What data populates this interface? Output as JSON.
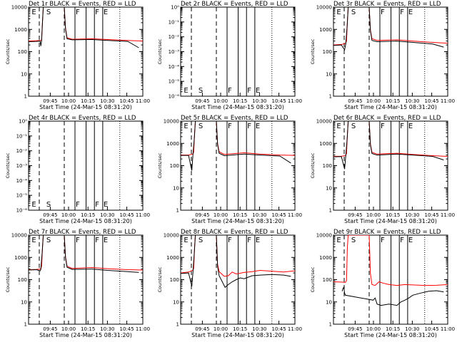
{
  "chart_data": {
    "type": "line",
    "xlabel": "Start Time (24-Mar-15 08:31:20)",
    "ylabel": "Counts/sec",
    "x_ticks": [
      "09:45",
      "10:00",
      "10:15",
      "10:30",
      "10:45",
      "11:00"
    ],
    "colors": {
      "events": "#000000",
      "lld": "#ff0000"
    },
    "panels": [
      {
        "title": "Det 1r BLACK = Events, RED = LLD",
        "kind": "data",
        "y_ticks": [
          "1",
          "10",
          "100",
          "1000",
          "10000"
        ],
        "markers": [
          "E",
          "S",
          "F",
          "F",
          "E"
        ],
        "lld": [
          [
            0,
            300
          ],
          [
            20,
            310
          ],
          [
            30,
            315
          ],
          [
            33,
            340
          ],
          [
            35,
            2000
          ],
          [
            37,
            10000
          ],
          [
            90,
            10000
          ],
          [
            93,
            1200
          ],
          [
            97,
            420
          ],
          [
            110,
            360
          ],
          [
            160,
            380
          ],
          [
            200,
            350
          ],
          [
            250,
            320
          ],
          [
            288,
            300
          ]
        ],
        "events": [
          [
            0,
            280
          ],
          [
            20,
            290
          ],
          [
            29,
            300
          ],
          [
            31,
            180
          ],
          [
            33,
            320
          ],
          [
            35,
            1800
          ],
          [
            37,
            10000
          ],
          [
            90,
            10000
          ],
          [
            93,
            1100
          ],
          [
            97,
            380
          ],
          [
            110,
            340
          ],
          [
            160,
            350
          ],
          [
            200,
            320
          ],
          [
            250,
            290
          ],
          [
            278,
            150
          ]
        ]
      },
      {
        "title": "Det 2r BLACK = Events, RED = LLD",
        "kind": "empty",
        "y_ticks": [
          "10⁻⁶",
          "10⁻⁵",
          "10⁻⁴",
          "10⁻³",
          "10⁻²",
          "10⁻¹",
          "10⁰"
        ],
        "markers": [
          "E",
          "S",
          "F",
          "F",
          "E"
        ]
      },
      {
        "title": "Det 3r BLACK = Events, RED = LLD",
        "kind": "data",
        "y_ticks": [
          "1",
          "10",
          "100",
          "1000",
          "10000"
        ],
        "markers": [
          "E",
          "S",
          "F",
          "F",
          "E"
        ],
        "lld": [
          [
            0,
            200
          ],
          [
            20,
            210
          ],
          [
            30,
            230
          ],
          [
            33,
            300
          ],
          [
            35,
            2000
          ],
          [
            37,
            10000
          ],
          [
            90,
            10000
          ],
          [
            93,
            1000
          ],
          [
            97,
            380
          ],
          [
            110,
            320
          ],
          [
            160,
            340
          ],
          [
            200,
            300
          ],
          [
            250,
            260
          ],
          [
            288,
            240
          ]
        ],
        "events": [
          [
            0,
            190
          ],
          [
            20,
            200
          ],
          [
            28,
            120
          ],
          [
            31,
            220
          ],
          [
            35,
            1800
          ],
          [
            37,
            10000
          ],
          [
            90,
            10000
          ],
          [
            93,
            900
          ],
          [
            97,
            320
          ],
          [
            110,
            280
          ],
          [
            160,
            300
          ],
          [
            200,
            260
          ],
          [
            250,
            220
          ],
          [
            278,
            160
          ]
        ]
      },
      {
        "title": "Det 4r BLACK = Events, RED = LLD",
        "kind": "empty",
        "y_ticks": [
          "10⁻⁶",
          "10⁻⁵",
          "10⁻⁴",
          "10⁻³",
          "10⁻²",
          "10⁻¹",
          "10⁰"
        ],
        "markers": [
          "E",
          "S",
          "F",
          "F",
          "E"
        ]
      },
      {
        "title": "Det 5r BLACK = Events, RED = LLD",
        "kind": "data",
        "y_ticks": [
          "1",
          "10",
          "100",
          "1000",
          "10000"
        ],
        "markers": [
          "E",
          "S",
          "F",
          "F",
          "E"
        ],
        "lld": [
          [
            0,
            300
          ],
          [
            20,
            300
          ],
          [
            30,
            330
          ],
          [
            33,
            400
          ],
          [
            35,
            2500
          ],
          [
            37,
            10000
          ],
          [
            90,
            10000
          ],
          [
            93,
            1000
          ],
          [
            97,
            420
          ],
          [
            110,
            320
          ],
          [
            160,
            380
          ],
          [
            200,
            330
          ],
          [
            250,
            300
          ],
          [
            288,
            290
          ]
        ],
        "events": [
          [
            0,
            290
          ],
          [
            20,
            290
          ],
          [
            28,
            60
          ],
          [
            31,
            300
          ],
          [
            35,
            2200
          ],
          [
            37,
            10000
          ],
          [
            90,
            10000
          ],
          [
            93,
            900
          ],
          [
            97,
            360
          ],
          [
            110,
            280
          ],
          [
            160,
            330
          ],
          [
            200,
            300
          ],
          [
            250,
            270
          ],
          [
            278,
            130
          ]
        ]
      },
      {
        "title": "Det 6r BLACK = Events, RED = LLD",
        "kind": "data",
        "y_ticks": [
          "1",
          "10",
          "100",
          "1000",
          "10000"
        ],
        "markers": [
          "E",
          "S",
          "F",
          "F",
          "E"
        ],
        "lld": [
          [
            0,
            260
          ],
          [
            20,
            265
          ],
          [
            30,
            280
          ],
          [
            33,
            350
          ],
          [
            35,
            2200
          ],
          [
            37,
            10000
          ],
          [
            90,
            10000
          ],
          [
            93,
            1000
          ],
          [
            97,
            400
          ],
          [
            110,
            330
          ],
          [
            160,
            360
          ],
          [
            200,
            320
          ],
          [
            250,
            280
          ],
          [
            288,
            260
          ]
        ],
        "events": [
          [
            0,
            250
          ],
          [
            20,
            255
          ],
          [
            28,
            70
          ],
          [
            31,
            270
          ],
          [
            35,
            2000
          ],
          [
            37,
            10000
          ],
          [
            90,
            10000
          ],
          [
            93,
            900
          ],
          [
            97,
            350
          ],
          [
            110,
            300
          ],
          [
            160,
            330
          ],
          [
            200,
            300
          ],
          [
            250,
            260
          ],
          [
            278,
            180
          ]
        ]
      },
      {
        "title": "Det 7r BLACK = Events, RED = LLD",
        "kind": "data",
        "y_ticks": [
          "1",
          "10",
          "100",
          "1000",
          "10000"
        ],
        "markers": [
          "E",
          "S",
          "F",
          "F",
          "E"
        ],
        "lld": [
          [
            0,
            280
          ],
          [
            20,
            290
          ],
          [
            30,
            300
          ],
          [
            33,
            400
          ],
          [
            35,
            2500
          ],
          [
            37,
            10000
          ],
          [
            90,
            10000
          ],
          [
            93,
            1100
          ],
          [
            97,
            400
          ],
          [
            110,
            320
          ],
          [
            160,
            350
          ],
          [
            200,
            310
          ],
          [
            250,
            280
          ],
          [
            288,
            270
          ]
        ],
        "events": [
          [
            0,
            270
          ],
          [
            20,
            280
          ],
          [
            29,
            250
          ],
          [
            31,
            290
          ],
          [
            35,
            2300
          ],
          [
            37,
            10000
          ],
          [
            90,
            10000
          ],
          [
            93,
            1000
          ],
          [
            97,
            360
          ],
          [
            110,
            290
          ],
          [
            160,
            300
          ],
          [
            200,
            260
          ],
          [
            250,
            230
          ],
          [
            278,
            210
          ]
        ]
      },
      {
        "title": "Det 8r BLACK = Events, RED = LLD",
        "kind": "data",
        "y_ticks": [
          "1",
          "10",
          "100",
          "1000",
          "10000"
        ],
        "markers": [
          "E",
          "S",
          "F",
          "F",
          "E"
        ],
        "lld": [
          [
            0,
            200
          ],
          [
            20,
            220
          ],
          [
            30,
            260
          ],
          [
            33,
            320
          ],
          [
            35,
            2500
          ],
          [
            37,
            10000
          ],
          [
            90,
            10000
          ],
          [
            93,
            500
          ],
          [
            97,
            230
          ],
          [
            110,
            140
          ],
          [
            120,
            150
          ],
          [
            130,
            220
          ],
          [
            140,
            180
          ],
          [
            160,
            210
          ],
          [
            180,
            230
          ],
          [
            200,
            260
          ],
          [
            230,
            240
          ],
          [
            260,
            220
          ],
          [
            288,
            250
          ]
        ],
        "events": [
          [
            0,
            190
          ],
          [
            20,
            200
          ],
          [
            28,
            50
          ],
          [
            31,
            210
          ],
          [
            35,
            2300
          ],
          [
            37,
            10000
          ],
          [
            90,
            10000
          ],
          [
            93,
            400
          ],
          [
            97,
            150
          ],
          [
            105,
            80
          ],
          [
            112,
            45
          ],
          [
            120,
            60
          ],
          [
            130,
            80
          ],
          [
            140,
            100
          ],
          [
            150,
            120
          ],
          [
            160,
            110
          ],
          [
            180,
            150
          ],
          [
            200,
            160
          ],
          [
            230,
            170
          ],
          [
            260,
            160
          ],
          [
            278,
            140
          ]
        ]
      },
      {
        "title": "Det 9r BLACK = Events, RED = LLD",
        "kind": "data",
        "y_ticks": [
          "1",
          "10",
          "100",
          "1000",
          "10000"
        ],
        "markers": [
          "E",
          "S",
          "F",
          "F",
          "E"
        ],
        "lld": [
          [
            0,
            80
          ],
          [
            20,
            78
          ],
          [
            30,
            75
          ],
          [
            33,
            90
          ],
          [
            35,
            2500
          ],
          [
            37,
            10000
          ],
          [
            90,
            10000
          ],
          [
            93,
            200
          ],
          [
            97,
            60
          ],
          [
            105,
            55
          ],
          [
            115,
            80
          ],
          [
            125,
            70
          ],
          [
            140,
            60
          ],
          [
            160,
            55
          ],
          [
            180,
            60
          ],
          [
            200,
            58
          ],
          [
            230,
            55
          ],
          [
            260,
            56
          ],
          [
            288,
            60
          ]
        ],
        "events": [
          [
            22,
            30
          ],
          [
            24,
            40
          ],
          [
            26,
            45
          ],
          [
            28,
            25
          ],
          [
            30,
            20
          ],
          [
            100,
            12
          ],
          [
            105,
            15
          ],
          [
            110,
            8
          ],
          [
            120,
            7
          ],
          [
            140,
            8
          ],
          [
            160,
            7
          ],
          [
            170,
            10
          ],
          [
            180,
            12
          ],
          [
            190,
            15
          ],
          [
            200,
            20
          ],
          [
            220,
            25
          ],
          [
            240,
            30
          ],
          [
            260,
            32
          ],
          [
            278,
            28
          ]
        ]
      }
    ]
  }
}
